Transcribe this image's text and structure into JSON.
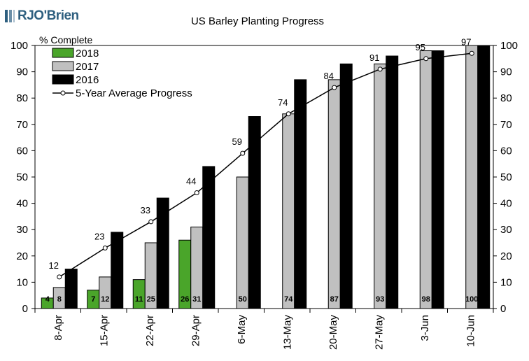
{
  "logo": {
    "text": "RJO'Brien",
    "color": "#2e5f7f"
  },
  "chart_data": {
    "type": "bar",
    "title": "US Barley Planting Progress",
    "ylabel": "% Complete",
    "xlabel": "",
    "ylim": [
      0,
      100
    ],
    "yticks": [
      0,
      10,
      20,
      30,
      40,
      50,
      60,
      70,
      80,
      90,
      100
    ],
    "categories": [
      "8-Apr",
      "15-Apr",
      "22-Apr",
      "29-Apr",
      "6-May",
      "13-May",
      "20-May",
      "27-May",
      "3-Jun",
      "10-Jun"
    ],
    "series": [
      {
        "name": "2018",
        "kind": "bar",
        "color": "#4aa52a",
        "values": [
          4,
          7,
          11,
          26,
          null,
          null,
          null,
          null,
          null,
          null
        ],
        "labels": [
          "4",
          "7",
          "11",
          "26",
          "",
          "",
          "",
          "",
          "",
          ""
        ]
      },
      {
        "name": "2017",
        "kind": "bar",
        "color": "#c0c0c0",
        "values": [
          8,
          12,
          25,
          31,
          50,
          74,
          87,
          93,
          98,
          100
        ],
        "labels": [
          "8",
          "12",
          "25",
          "31",
          "50",
          "74",
          "87",
          "93",
          "98",
          "100"
        ]
      },
      {
        "name": "2016",
        "kind": "bar",
        "color": "#000000",
        "values": [
          15,
          29,
          42,
          54,
          73,
          87,
          93,
          96,
          98,
          100
        ]
      },
      {
        "name": "5-Year Average Progress",
        "kind": "line",
        "color": "#000000",
        "values": [
          12,
          23,
          33,
          44,
          59,
          74,
          84,
          91,
          95,
          97
        ],
        "labels": [
          "12",
          "23",
          "33",
          "44",
          "59",
          "74",
          "84",
          "91",
          "95",
          "97"
        ]
      }
    ],
    "legend_position": "top-left",
    "grid": false
  }
}
